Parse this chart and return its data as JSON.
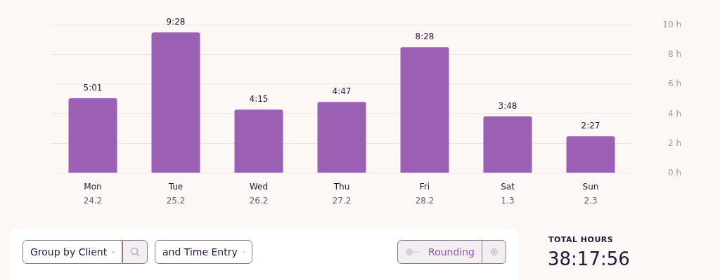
{
  "chart_data": {
    "type": "bar",
    "categories": [
      "Mon\n24.2",
      "Tue\n25.2",
      "Wed\n26.2",
      "Thu\n27.2",
      "Fri\n28.2",
      "Sat\n1.3",
      "Sun\n2.3"
    ],
    "values": [
      5.02,
      9.47,
      4.25,
      4.78,
      8.47,
      3.8,
      2.45
    ],
    "value_labels": [
      "5:01",
      "9:28",
      "4:15",
      "4:47",
      "8:28",
      "3:48",
      "2:27"
    ],
    "color": "#9b5fb3",
    "ylim": [
      0,
      10
    ],
    "yticks": [
      {
        "value": 0,
        "label": "0 h"
      },
      {
        "value": 2,
        "label": "2 h"
      },
      {
        "value": 4,
        "label": "4 h"
      },
      {
        "value": 6,
        "label": "6 h"
      },
      {
        "value": 8,
        "label": "8 h"
      },
      {
        "value": 10,
        "label": "10 h"
      }
    ],
    "grid": "y",
    "annotations": [
      "Group by Client",
      "and Time Entry",
      "Rounding",
      "TOTAL HOURS",
      "38:17:56"
    ]
  }
}
